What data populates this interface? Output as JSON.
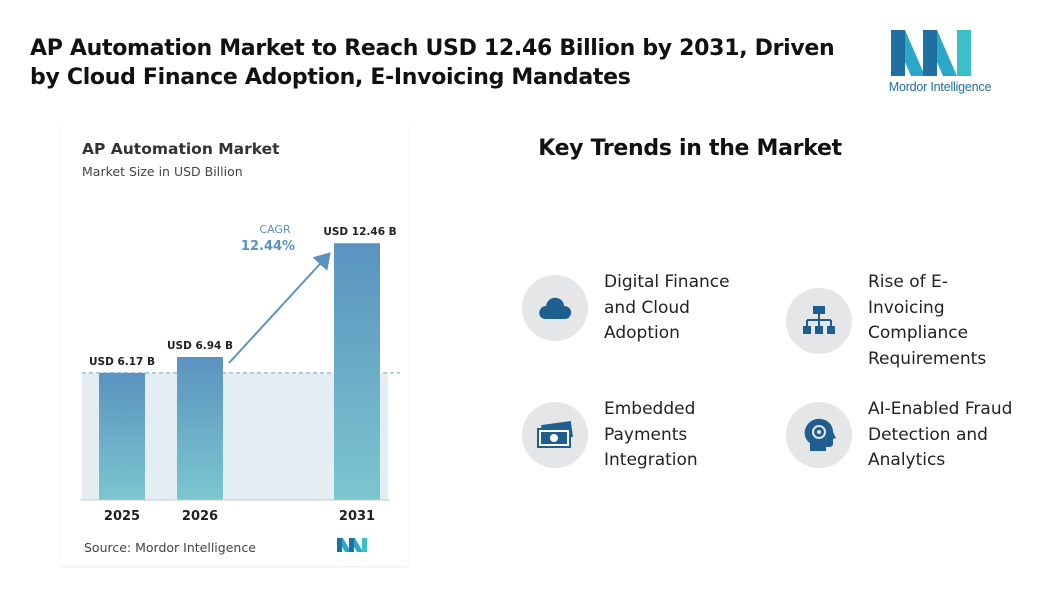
{
  "headline": "AP Automation Market to Reach USD 12.46 Billion by 2031, Driven by Cloud Finance Adoption, E-Invoicing Mandates",
  "brand": {
    "name": "Mordor Intelligence",
    "color": "#1f6fa0"
  },
  "trends_title": "Key Trends in the Market",
  "trends": [
    {
      "label": "Digital Finance\nand Cloud\nAdoption",
      "icon": "cloud-icon"
    },
    {
      "label": "Rise of E-\nInvoicing\nCompliance\nRequirements",
      "icon": "org-chart-icon"
    },
    {
      "label": "Embedded\nPayments\nIntegration",
      "icon": "cash-icon"
    },
    {
      "label": "AI-Enabled Fraud\nDetection and\nAnalytics",
      "icon": "ai-head-icon"
    }
  ],
  "chart_data": {
    "type": "bar",
    "title": "AP Automation Market",
    "subtitle": "Market Size in USD Billion",
    "categories": [
      "2025",
      "2026",
      "2031"
    ],
    "values": [
      6.17,
      6.94,
      12.46
    ],
    "value_labels": [
      "USD 6.17 B",
      "USD 6.94 B",
      "USD 12.46 B"
    ],
    "cagr_label": "CAGR",
    "cagr_value": "12.44%",
    "source": "Source: Mordor Intelligence",
    "ylim": [
      0,
      13.2
    ],
    "bar_color_top": "#5a93bf",
    "bar_color_bottom": "#7cc6cf"
  }
}
